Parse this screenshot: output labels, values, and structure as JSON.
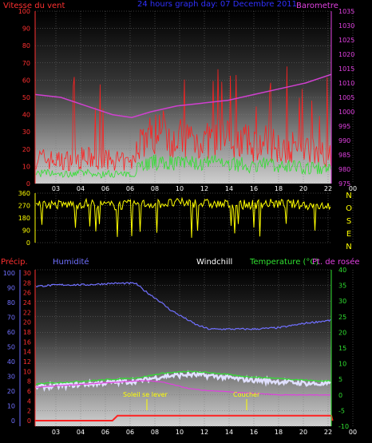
{
  "colors": {
    "wind_gust": "#ff2020",
    "wind_avg": "#30e030",
    "barometer": "#d040d0",
    "direction": "#ffff00",
    "precip": "#ff2020",
    "humidity": "#7070ff",
    "temperature": "#30e030",
    "dewpoint": "#e040e0",
    "windchill": "#e0e0ff",
    "sun_markers": "#ffff00"
  },
  "chart_data": [
    {
      "type": "line",
      "title": "24 hours graph day: 07 Decembre 2011",
      "ylabel": "Vitesse du vent",
      "y2label": "Barometre",
      "ylim": [
        0,
        100
      ],
      "yticks": [
        0,
        10,
        20,
        30,
        40,
        50,
        60,
        70,
        80,
        90,
        100
      ],
      "y2lim": [
        975,
        1035
      ],
      "y2ticks": [
        975,
        980,
        985,
        990,
        995,
        1000,
        1005,
        1010,
        1015,
        1020,
        1025,
        1030,
        1035
      ],
      "xlim": [
        1,
        24
      ],
      "xticks": [
        "03",
        "04",
        "06",
        "06",
        "08",
        "10",
        "12",
        "14",
        "16",
        "18",
        "20",
        "22",
        "00"
      ],
      "grid": true,
      "series": [
        {
          "x": [
            1,
            2,
            3,
            4,
            5,
            6,
            7,
            8,
            8.6,
            9,
            10,
            11,
            12,
            13,
            14,
            15,
            16,
            17,
            18,
            19,
            20,
            21,
            22,
            23,
            24
          ],
          "values": [
            15,
            14,
            13,
            14,
            15,
            13,
            14,
            12,
            12,
            25,
            28,
            30,
            26,
            27,
            24,
            26,
            27,
            25,
            22,
            24,
            22,
            21,
            20,
            19,
            17
          ]
        },
        {
          "x": [
            1,
            2,
            3,
            4,
            5,
            6,
            7,
            8,
            8.6,
            9,
            10,
            11,
            12,
            13,
            14,
            15,
            16,
            17,
            18,
            19,
            20,
            21,
            22,
            23,
            24
          ],
          "values": [
            6,
            6,
            5,
            6,
            6,
            5,
            6,
            5,
            5,
            11,
            12,
            13,
            12,
            12,
            11,
            12,
            12,
            11,
            10,
            11,
            10,
            10,
            9,
            9,
            8
          ]
        },
        {
          "name": "Barometre",
          "x": [
            1,
            3,
            5,
            7,
            8.5,
            10,
            12,
            14,
            16,
            18,
            20,
            22,
            24
          ],
          "values": [
            1006,
            1005,
            1002,
            999,
            998,
            1000,
            1002,
            1003,
            1004,
            1006,
            1008,
            1010,
            1013
          ]
        }
      ]
    },
    {
      "type": "line",
      "ylim": [
        0,
        360
      ],
      "yticks": [
        0,
        90,
        180,
        270,
        360
      ],
      "compass_labels": [
        "N",
        "O",
        "S",
        "E",
        "N"
      ],
      "grid": true,
      "series": [
        {
          "x": [
            1,
            3,
            5,
            7,
            9,
            11,
            13,
            15,
            17,
            19,
            21,
            23,
            24
          ],
          "values": [
            280,
            275,
            285,
            270,
            280,
            285,
            290,
            280,
            275,
            285,
            280,
            270,
            275
          ]
        }
      ]
    },
    {
      "type": "line",
      "legend": [
        "Précip.",
        "Humidité",
        "Windchill",
        "Temperature (°C)",
        "Pt. de rosée"
      ],
      "precip_lim": [
        0,
        30
      ],
      "precip_ticks": [
        0,
        2,
        4,
        6,
        8,
        10,
        12,
        14,
        16,
        18,
        20,
        22,
        24,
        26,
        28,
        30
      ],
      "humidity_lim": [
        0,
        100
      ],
      "humidity_ticks": [
        0,
        10,
        20,
        30,
        40,
        50,
        60,
        70,
        80,
        90,
        100
      ],
      "temp_lim": [
        -10,
        40
      ],
      "temp_ticks": [
        -10,
        -5,
        0,
        5,
        10,
        15,
        20,
        25,
        30,
        35,
        40
      ],
      "annotations": [
        "Soleil se lever",
        "Coucher"
      ],
      "grid": true,
      "series": [
        {
          "name": "Humidité",
          "x": [
            1,
            3,
            5,
            7,
            8.8,
            9.5,
            10.5,
            11.5,
            12.5,
            13.5,
            14.5,
            16,
            18,
            20,
            22,
            24
          ],
          "values": [
            91,
            92,
            92,
            93,
            93,
            88,
            82,
            75,
            70,
            65,
            62,
            62,
            62,
            63,
            66,
            68
          ]
        },
        {
          "name": "Windchill",
          "x": [
            1,
            3,
            5,
            7,
            9,
            11,
            13,
            15,
            17,
            19,
            21,
            23,
            24
          ],
          "values": [
            2.5,
            3,
            3.5,
            4,
            4.5,
            6,
            6.5,
            6,
            5,
            4.5,
            4,
            3.5,
            3.5
          ]
        },
        {
          "name": "Temperature (°C)",
          "x": [
            1,
            3,
            5,
            7,
            9,
            11,
            13,
            15,
            17,
            19,
            21,
            23,
            24
          ],
          "values": [
            3.5,
            4,
            4.5,
            5,
            5.5,
            7,
            7.5,
            7,
            6,
            5.5,
            5,
            4.5,
            4.5
          ]
        },
        {
          "name": "Pt. de rosée",
          "x": [
            1,
            3,
            5,
            7,
            9,
            10,
            11,
            12,
            13,
            14,
            16,
            18,
            20,
            22,
            24
          ],
          "values": [
            2.5,
            3,
            3.5,
            4,
            4.5,
            4.5,
            4,
            3,
            2,
            1.5,
            1,
            0.5,
            0,
            0,
            0
          ]
        },
        {
          "name": "Précip.",
          "x": [
            1,
            4,
            7,
            7.4,
            8,
            16,
            24,
            24.1
          ],
          "values": [
            0,
            0,
            0,
            1,
            1,
            1,
            1,
            0
          ]
        }
      ]
    }
  ]
}
